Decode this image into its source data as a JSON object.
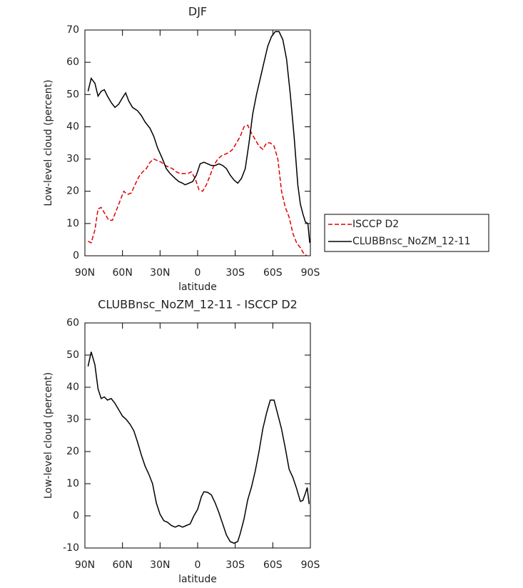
{
  "chart_data": [
    {
      "type": "line",
      "title": "DJF",
      "x_label": "latitude",
      "y_label": "Low-level cloud (percent)",
      "xlim": [
        90,
        -90
      ],
      "ylim": [
        0,
        70
      ],
      "xticks": [
        {
          "value": 90,
          "label": "90N"
        },
        {
          "value": 60,
          "label": "60N"
        },
        {
          "value": 30,
          "label": "30N"
        },
        0,
        {
          "value": -30,
          "label": "30S"
        },
        {
          "value": -60,
          "label": "60S"
        },
        {
          "value": -90,
          "label": "90S"
        }
      ],
      "yticks": [
        0,
        10,
        20,
        30,
        40,
        50,
        60,
        70
      ],
      "legend": "right",
      "series": [
        {
          "name": "ISCCP D2",
          "color": "#e00000",
          "dash": true,
          "x": [
            87.5,
            85,
            82,
            79.5,
            77,
            74,
            71,
            68,
            65,
            62,
            59,
            56,
            53,
            50,
            47,
            44,
            41,
            38,
            35,
            32,
            29,
            26,
            23,
            20,
            17,
            14,
            11,
            8,
            5,
            2,
            -1,
            -4,
            -7,
            -10,
            -13,
            -16,
            -19,
            -22,
            -25,
            -28,
            -31,
            -34,
            -37,
            -40,
            -43,
            -46,
            -49,
            -52,
            -55,
            -58,
            -61,
            -64,
            -67,
            -70,
            -73,
            -76,
            -79,
            -82,
            -85,
            -87.5
          ],
          "values": [
            4.5,
            4,
            8,
            14.5,
            15,
            13,
            11,
            11,
            14,
            17,
            20,
            19,
            19.5,
            22,
            24.5,
            26,
            27,
            29,
            30,
            29.5,
            29,
            28,
            27.5,
            27,
            26,
            25.5,
            25.5,
            25.5,
            26,
            24,
            20.5,
            20,
            22,
            25,
            28,
            30,
            31,
            31.5,
            32,
            33,
            35,
            37,
            40,
            40.5,
            38,
            36,
            34,
            33,
            35,
            35,
            34,
            30,
            20,
            15,
            12,
            7,
            4,
            2.5,
            0.5,
            0
          ]
        },
        {
          "name": "CLUBBnsc_NoZM_12-11",
          "color": "#000000",
          "dash": false,
          "x": [
            87.5,
            85,
            82,
            79.5,
            77,
            74.5,
            72,
            69,
            66,
            63,
            60,
            57.5,
            55,
            52,
            48,
            45,
            42,
            38,
            35,
            32,
            28,
            25,
            22,
            18,
            15,
            12,
            10,
            7,
            4,
            1,
            -2,
            -5,
            -8,
            -11,
            -14,
            -17,
            -20,
            -23,
            -26,
            -29,
            -32,
            -35,
            -38,
            -41,
            -44,
            -47,
            -50,
            -53,
            -56,
            -59,
            -62,
            -65,
            -68,
            -71,
            -74,
            -77,
            -80,
            -82,
            -84,
            -86,
            -88,
            -89.5
          ],
          "values": [
            51,
            55,
            53.5,
            49.5,
            51,
            51.5,
            49.5,
            47.5,
            46,
            47,
            49,
            50.5,
            48,
            46,
            45,
            43.5,
            41.5,
            39.5,
            37,
            33.5,
            30,
            27,
            25.5,
            24,
            23,
            22.5,
            22,
            22.5,
            23,
            25,
            28.5,
            29,
            28.5,
            28,
            28,
            28.5,
            28,
            27,
            25,
            23.5,
            22.5,
            24,
            27,
            35,
            44,
            50,
            55,
            60,
            65,
            68,
            69.5,
            69.5,
            67,
            61,
            50,
            37,
            22,
            16,
            13,
            10.5,
            10,
            4
          ]
        }
      ]
    },
    {
      "type": "line",
      "title": "CLUBBnsc_NoZM_12-11 - ISCCP D2",
      "x_label": "latitude",
      "y_label": "Low-level cloud (percent)",
      "xlim": [
        90,
        -90
      ],
      "ylim": [
        -10,
        60
      ],
      "xticks": [
        {
          "value": 90,
          "label": "90N"
        },
        {
          "value": 60,
          "label": "60N"
        },
        {
          "value": 30,
          "label": "30N"
        },
        0,
        {
          "value": -30,
          "label": "30S"
        },
        {
          "value": -60,
          "label": "60S"
        },
        {
          "value": -90,
          "label": "90S"
        }
      ],
      "yticks": [
        -10,
        0,
        10,
        20,
        30,
        40,
        50,
        60
      ],
      "color": "#000000",
      "x": [
        87.5,
        85,
        82,
        79.5,
        77,
        74.5,
        72,
        69,
        66,
        63,
        60,
        57,
        54,
        51,
        48,
        45,
        42,
        39,
        36,
        33,
        30,
        27,
        24,
        21,
        18,
        15,
        12,
        9,
        6,
        3,
        0,
        -3,
        -5,
        -8,
        -11,
        -14,
        -17,
        -20,
        -23,
        -26,
        -29,
        -32,
        -34,
        -37,
        -40,
        -43,
        -46,
        -49,
        -52,
        -55,
        -58,
        -61,
        -64,
        -67,
        -70,
        -73,
        -76,
        -79,
        -82,
        -84,
        -86,
        -87.5,
        -89
      ],
      "values": [
        46.5,
        51,
        47,
        39.5,
        36.5,
        37,
        36,
        36.5,
        35,
        33,
        31,
        30,
        28.5,
        26.5,
        23,
        19,
        15.5,
        13,
        10,
        4,
        0.5,
        -1.5,
        -2,
        -3,
        -3.5,
        -3,
        -3.5,
        -3,
        -2.5,
        0,
        2,
        6,
        7.5,
        7.3,
        6.5,
        4,
        1,
        -2.5,
        -6,
        -8,
        -8.5,
        -8,
        -5.5,
        -1,
        5,
        9,
        14,
        20,
        27,
        32,
        36,
        36,
        31.5,
        27,
        21,
        14.5,
        12,
        8.5,
        4.5,
        4.8,
        7,
        8.8,
        3.7
      ]
    }
  ]
}
